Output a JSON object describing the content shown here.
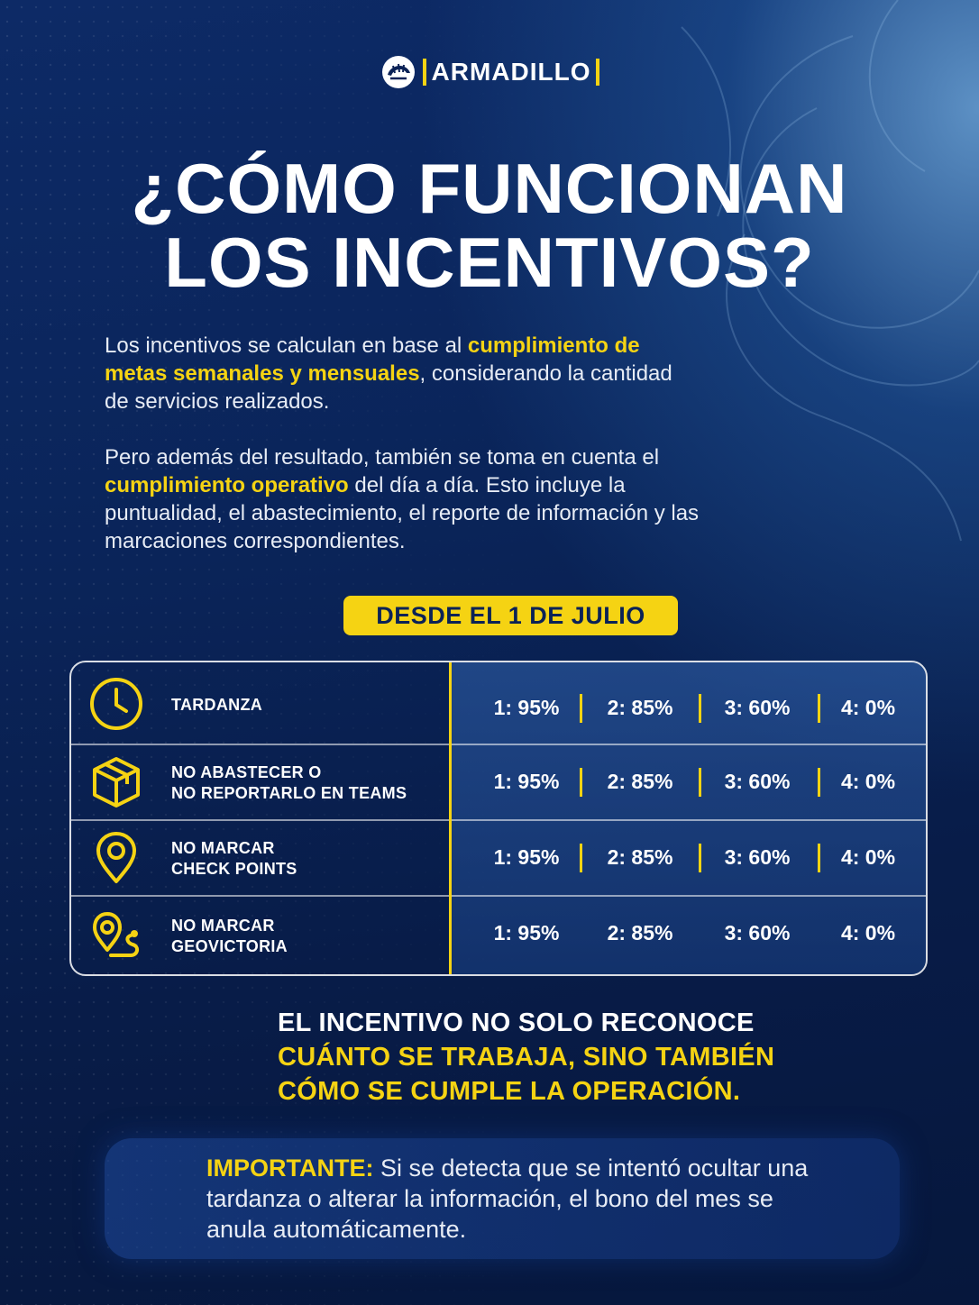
{
  "brand": {
    "name": "ARMADILLO",
    "logo_icon": "armadillo-icon"
  },
  "title": {
    "line1": "¿CÓMO FUNCIONAN",
    "line2": "LOS INCENTIVOS?"
  },
  "intro": {
    "p1_a": "Los incentivos se calculan en base al ",
    "p1_b": "cumplimiento de metas semanales y mensuales",
    "p1_c": ", considerando la cantidad de servicios realizados.",
    "p2_a": "Pero además del resultado, también se toma en cuenta el ",
    "p2_b": "cumplimiento operativo",
    "p2_c": " del día a día. Esto incluye la puntualidad, el abastecimiento, el reporte de información y las marcaciones correspondientes."
  },
  "date_badge": "DESDE EL 1 DE JULIO",
  "rows": [
    {
      "icon": "clock-icon",
      "line1": "TARDANZA",
      "line2": "",
      "values": [
        "1: 95%",
        "2: 85%",
        "3: 60%",
        "4: 0%"
      ]
    },
    {
      "icon": "box-icon",
      "line1": "NO ABASTECER O",
      "line2": "NO REPORTARLO EN TEAMS",
      "values": [
        "1: 95%",
        "2: 85%",
        "3: 60%",
        "4: 0%"
      ]
    },
    {
      "icon": "location-pin-icon",
      "line1": "NO MARCAR",
      "line2": "CHECK POINTS",
      "values": [
        "1: 95%",
        "2: 85%",
        "3: 60%",
        "4: 0%"
      ]
    },
    {
      "icon": "route-pin-icon",
      "line1": "NO MARCAR",
      "line2": "GEOVICTORIA",
      "values": [
        "1: 95%",
        "2: 85%",
        "3: 60%",
        "4: 0%"
      ]
    }
  ],
  "tagline": {
    "line1": "EL INCENTIVO NO SOLO RECONOCE",
    "line2": "CUÁNTO SE TRABAJA, SINO TAMBIÉN",
    "line3": "CÓMO SE CUMPLE LA OPERACIÓN."
  },
  "important": {
    "label": "IMPORTANTE:",
    "text": " Si se detecta que se intentó ocultar una tardanza o alterar la información, el bono del mes se anula automáticamente."
  },
  "colors": {
    "accent": "#f5d313",
    "background": "#0a2459",
    "text": "#ffffff"
  }
}
